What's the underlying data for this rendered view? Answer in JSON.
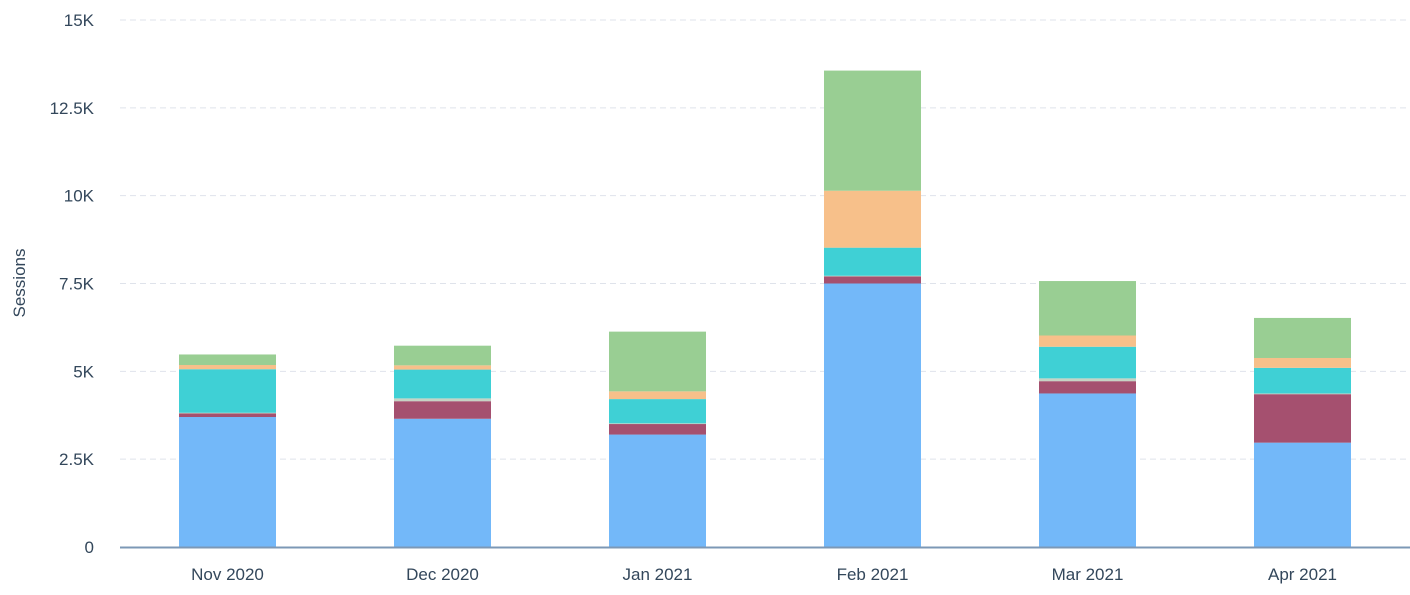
{
  "chart_data": {
    "type": "bar",
    "stacked": true,
    "title": "",
    "xlabel": "",
    "ylabel": "Sessions",
    "ylim": [
      0,
      15000
    ],
    "y_ticks": [
      {
        "value": 0,
        "label": "0"
      },
      {
        "value": 2500,
        "label": "2.5K"
      },
      {
        "value": 5000,
        "label": "5K"
      },
      {
        "value": 7500,
        "label": "7.5K"
      },
      {
        "value": 10000,
        "label": "10K"
      },
      {
        "value": 12500,
        "label": "12.5K"
      },
      {
        "value": 15000,
        "label": "15K"
      }
    ],
    "grid": true,
    "legend": "none",
    "categories": [
      "Nov 2020",
      "Dec 2020",
      "Jan 2021",
      "Feb 2021",
      "Mar 2021",
      "Apr 2021"
    ],
    "series": [
      {
        "color": "#73b8f9",
        "values": [
          3700,
          3650,
          3200,
          7500,
          4370,
          2970
        ]
      },
      {
        "color": "#a5506f",
        "values": [
          100,
          500,
          300,
          200,
          350,
          1380
        ]
      },
      {
        "color": "#c6d3c4",
        "values": [
          20,
          80,
          20,
          20,
          80,
          20
        ]
      },
      {
        "color": "#3fd0d5",
        "values": [
          1240,
          820,
          690,
          800,
          900,
          730
        ]
      },
      {
        "color": "#f7c08a",
        "values": [
          120,
          120,
          220,
          1620,
          320,
          280
        ]
      },
      {
        "color": "#99ce93",
        "values": [
          300,
          560,
          1700,
          3420,
          1550,
          1140
        ]
      }
    ],
    "colors": {
      "grid": "#dfe3eb",
      "axis": "#7c98b6",
      "text": "#33475b"
    }
  }
}
